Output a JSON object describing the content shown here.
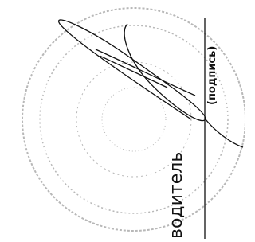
{
  "field": {
    "role": "водитель",
    "hint": "(подпись)"
  }
}
